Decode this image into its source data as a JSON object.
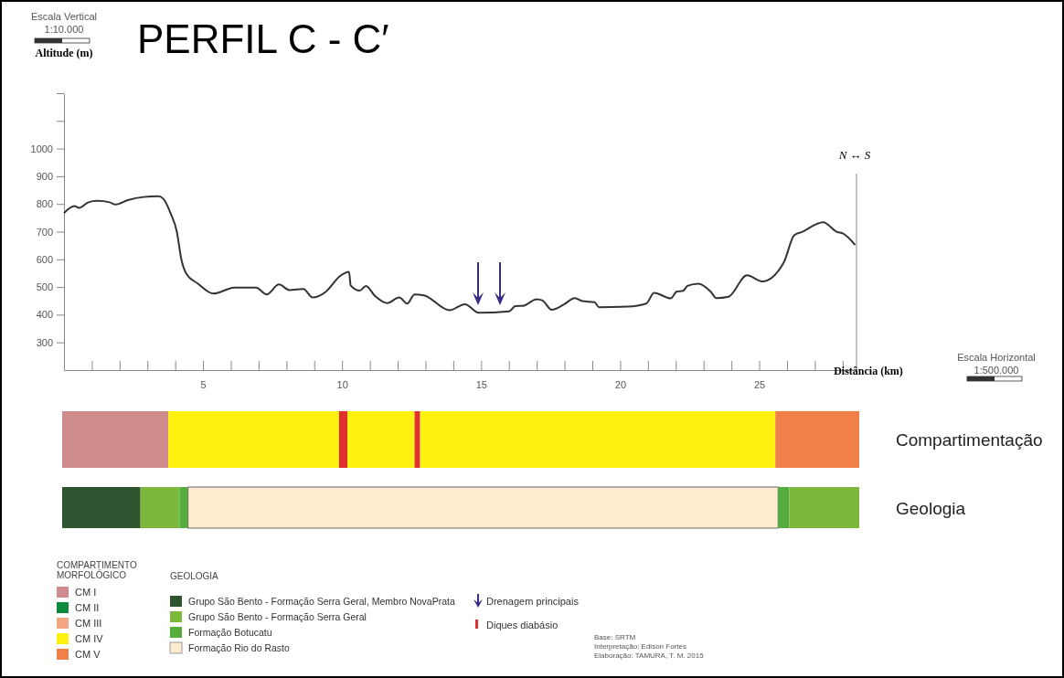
{
  "chart_data": [
    {
      "type": "line",
      "title": "PERFIL C - C′",
      "ylabel": "Altitude (m)",
      "xlabel": "Distância (km)",
      "annotations": [
        "Escala Vertical",
        "1:10.000",
        "Escala Horizontal",
        "1:500.000",
        "N ↔ S",
        "Drenagem principais",
        "Base: SRTM",
        "Interpretação: Edison Fortes",
        "Elaboração: TAMURA, T. M. 2015"
      ],
      "xlim": [
        0,
        28.5
      ],
      "ylim": [
        200,
        1200
      ],
      "xticks": [
        {
          "value": 1,
          "label": null
        },
        {
          "value": 2,
          "label": null
        },
        {
          "value": 3,
          "label": null
        },
        {
          "value": 4,
          "label": null
        },
        5,
        {
          "value": 6,
          "label": null
        },
        {
          "value": 7,
          "label": null
        },
        {
          "value": 8,
          "label": null
        },
        {
          "value": 9,
          "label": null
        },
        10,
        {
          "value": 11,
          "label": null
        },
        {
          "value": 12,
          "label": null
        },
        {
          "value": 13,
          "label": null
        },
        {
          "value": 14,
          "label": null
        },
        15,
        {
          "value": 16,
          "label": null
        },
        {
          "value": 17,
          "label": null
        },
        {
          "value": 18,
          "label": null
        },
        {
          "value": 19,
          "label": null
        },
        20,
        {
          "value": 21,
          "label": null
        },
        {
          "value": 22,
          "label": null
        },
        {
          "value": 23,
          "label": null
        },
        {
          "value": 24,
          "label": null
        },
        25,
        {
          "value": 26,
          "label": null
        },
        {
          "value": 27,
          "label": null
        },
        {
          "value": 28,
          "label": null
        }
      ],
      "yticks": [
        300,
        400,
        500,
        600,
        700,
        800,
        900,
        1000,
        {
          "value": 1100,
          "label": null
        },
        {
          "value": 1200,
          "label": null
        }
      ],
      "line_style": "solid",
      "series": [
        {
          "color": "#333333",
          "x": [
            0,
            0.38,
            0.55,
            0.88,
            1.2,
            1.64,
            1.86,
            2.3,
            2.85,
            3.4,
            3.56,
            3.84,
            4.06,
            4.22,
            4.39,
            4.82,
            5.37,
            6.14,
            6.91,
            7.29,
            7.73,
            8.11,
            8.61,
            8.94,
            9.43,
            9.92,
            10.25,
            10.31,
            10.64,
            10.86,
            11.18,
            11.62,
            12.06,
            12.34,
            12.61,
            12.94,
            13.87,
            14.42,
            14.91,
            16.01,
            16.23,
            16.5,
            17.0,
            17.21,
            17.54,
            17.98,
            18.37,
            18.64,
            19.08,
            19.24,
            20.28,
            20.94,
            21.22,
            21.82,
            22.04,
            22.26,
            22.42,
            22.81,
            23.25,
            23.46,
            23.9,
            24.56,
            25.11,
            25.88,
            26.26,
            26.54,
            27.3,
            27.8,
            28.02,
            28.45
          ],
          "values": [
            767,
            792,
            786,
            806,
            811,
            806,
            798,
            814,
            825,
            828,
            820,
            765,
            699,
            600,
            550,
            512,
            476,
            498,
            498,
            473,
            509,
            489,
            493,
            462,
            484,
            539,
            555,
            506,
            487,
            504,
            468,
            442,
            462,
            440,
            473,
            470,
            416,
            438,
            407,
            412,
            431,
            432,
            456,
            451,
            418,
            437,
            460,
            449,
            445,
            427,
            429,
            440,
            479,
            459,
            484,
            486,
            504,
            512,
            484,
            460,
            465,
            542,
            520,
            588,
            687,
            699,
            734,
            699,
            693,
            652
          ]
        }
      ]
    },
    {
      "type": "bar",
      "orientation": "horizontal",
      "stacked": true,
      "categories": [
        "Compartimentação"
      ],
      "legend_title": "COMPARTIMENTO MORFOLÓGICO",
      "legend": "bottom",
      "xlim": [
        0,
        28.5
      ],
      "series": [
        {
          "name": "CM I",
          "color": "#cd8b8b",
          "values": [
            3.8
          ]
        },
        {
          "name": "CM II",
          "color": "#0e8a3c",
          "values": [
            null
          ]
        },
        {
          "name": "CM III",
          "color": "#f4a582",
          "values": [
            null
          ]
        },
        {
          "name": "CM IV",
          "color": "#fff10f",
          "values": [
            6.1
          ]
        },
        {
          "name": "Diques diabásio",
          "color": "#e03030",
          "values": [
            0.3
          ]
        },
        {
          "color": "#fff10f",
          "values": [
            2.4
          ]
        },
        {
          "color": "#e03030",
          "values": [
            0.2
          ]
        },
        {
          "color": "#fff10f",
          "values": [
            12.7
          ]
        },
        {
          "name": "CM V",
          "color": "#f08048",
          "values": [
            3.0
          ]
        }
      ]
    },
    {
      "type": "bar",
      "orientation": "horizontal",
      "stacked": true,
      "categories": [
        "Geologia"
      ],
      "legend_title": "GEOLOGIA",
      "legend": "bottom",
      "xlim": [
        0,
        28.5
      ],
      "series": [
        {
          "name": "Grupo São Bento - Formação Serra Geral, Membro NovaPrata",
          "color": "#2f5530",
          "values": [
            2.8
          ]
        },
        {
          "name": "Grupo São Bento - Formação Serra Geral",
          "color": "#7cb83c",
          "values": [
            1.4
          ]
        },
        {
          "name": "Formação Botucatu",
          "color": "#55ad3c",
          "values": [
            0.3
          ]
        },
        {
          "name": "Formação Rio do Rasto",
          "color": "#fdeccf",
          "values": [
            21.1
          ]
        },
        {
          "color": "#55ad3c",
          "values": [
            0.4
          ]
        },
        {
          "color": "#7cb83c",
          "values": [
            2.5
          ]
        }
      ]
    }
  ]
}
